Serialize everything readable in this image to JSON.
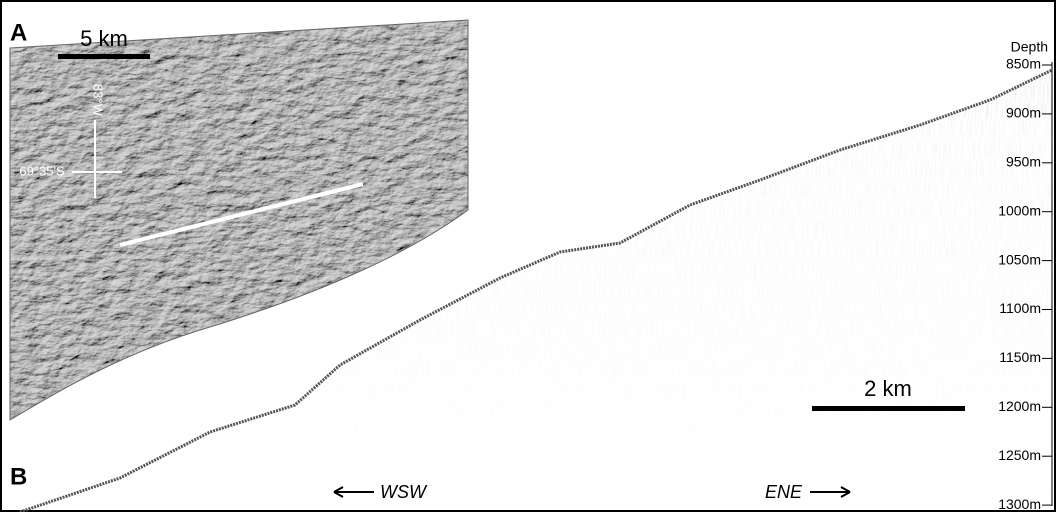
{
  "panel_a": {
    "label": "A",
    "scale_bar": "5 km",
    "lat_label": "69°35'S",
    "lon_label": "83°W"
  },
  "panel_b": {
    "label": "B",
    "scale_bar": "2 km",
    "direction_left": "WSW",
    "direction_right": "ENE"
  },
  "depth_axis": {
    "title": "Depth",
    "ticks": [
      "850m",
      "900m",
      "950m",
      "1000m",
      "1050m",
      "1100m",
      "1150m",
      "1200m",
      "1250m",
      "1300m"
    ]
  }
}
